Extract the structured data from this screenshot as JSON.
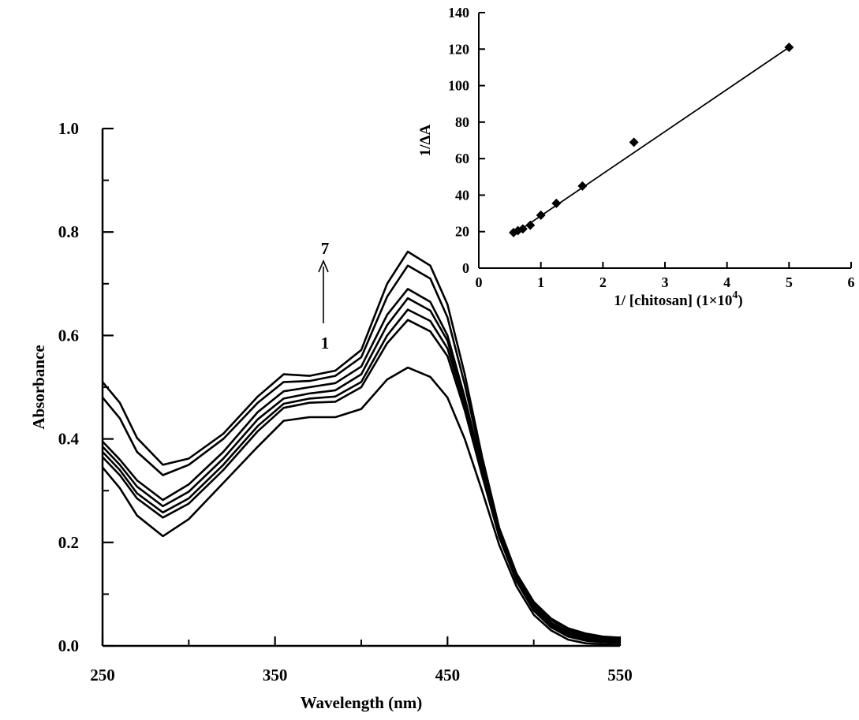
{
  "chart_data": [
    {
      "type": "line",
      "xlabel": "Wavelength (nm)",
      "ylabel": "Absorbance",
      "xlim": [
        250,
        550
      ],
      "ylim": [
        0.0,
        1.0
      ],
      "x_ticks": [
        "250",
        "350",
        "450",
        "550"
      ],
      "y_ticks": [
        "0.0",
        "0.2",
        "0.4",
        "0.6",
        "0.8",
        "1.0"
      ],
      "grid": false,
      "annotation": {
        "from_label": "1",
        "to_label": "7",
        "direction": "up",
        "x": 375
      },
      "x": [
        250,
        260,
        270,
        285,
        300,
        320,
        340,
        355,
        370,
        385,
        400,
        415,
        427,
        440,
        450,
        460,
        470,
        480,
        490,
        500,
        510,
        520,
        530,
        540,
        550
      ],
      "series": [
        {
          "values": [
            0.345,
            0.305,
            0.252,
            0.212,
            0.245,
            0.315,
            0.385,
            0.435,
            0.442,
            0.442,
            0.458,
            0.515,
            0.538,
            0.52,
            0.48,
            0.4,
            0.3,
            0.195,
            0.115,
            0.06,
            0.03,
            0.012,
            0.005,
            0.003,
            0.002
          ]
        },
        {
          "values": [
            0.365,
            0.33,
            0.285,
            0.248,
            0.275,
            0.34,
            0.415,
            0.46,
            0.47,
            0.472,
            0.5,
            0.585,
            0.63,
            0.608,
            0.56,
            0.455,
            0.33,
            0.21,
            0.125,
            0.068,
            0.036,
            0.018,
            0.01,
            0.007,
            0.006
          ]
        },
        {
          "values": [
            0.375,
            0.34,
            0.295,
            0.258,
            0.285,
            0.35,
            0.425,
            0.468,
            0.478,
            0.482,
            0.51,
            0.6,
            0.65,
            0.628,
            0.575,
            0.465,
            0.335,
            0.212,
            0.127,
            0.07,
            0.038,
            0.02,
            0.012,
            0.009,
            0.008
          ]
        },
        {
          "values": [
            0.385,
            0.35,
            0.308,
            0.27,
            0.298,
            0.362,
            0.438,
            0.478,
            0.488,
            0.494,
            0.525,
            0.62,
            0.672,
            0.648,
            0.59,
            0.475,
            0.34,
            0.215,
            0.13,
            0.073,
            0.041,
            0.023,
            0.014,
            0.011,
            0.01
          ]
        },
        {
          "values": [
            0.395,
            0.36,
            0.32,
            0.282,
            0.312,
            0.375,
            0.452,
            0.492,
            0.5,
            0.508,
            0.54,
            0.64,
            0.69,
            0.665,
            0.6,
            0.48,
            0.344,
            0.218,
            0.133,
            0.077,
            0.045,
            0.027,
            0.017,
            0.013,
            0.012
          ]
        },
        {
          "values": [
            0.48,
            0.44,
            0.375,
            0.33,
            0.35,
            0.4,
            0.47,
            0.51,
            0.512,
            0.522,
            0.558,
            0.675,
            0.735,
            0.71,
            0.635,
            0.505,
            0.356,
            0.224,
            0.137,
            0.082,
            0.05,
            0.031,
            0.021,
            0.016,
            0.014
          ]
        },
        {
          "values": [
            0.51,
            0.47,
            0.402,
            0.35,
            0.362,
            0.41,
            0.482,
            0.525,
            0.522,
            0.532,
            0.572,
            0.7,
            0.762,
            0.735,
            0.66,
            0.525,
            0.366,
            0.228,
            0.14,
            0.085,
            0.053,
            0.034,
            0.024,
            0.018,
            0.016
          ]
        }
      ]
    },
    {
      "type": "scatter",
      "xlabel": "1/ [chitosan] (1×10",
      "xlabel_sup": "4",
      "xlabel_end": ")",
      "ylabel": "1/ΔA",
      "xlim": [
        0,
        6
      ],
      "ylim": [
        0,
        140
      ],
      "x_ticks": [
        "0",
        "1",
        "2",
        "3",
        "4",
        "5",
        "6"
      ],
      "y_ticks": [
        "0",
        "20",
        "40",
        "60",
        "80",
        "100",
        "120",
        "140"
      ],
      "grid": false,
      "points": [
        {
          "x": 0.56,
          "y": 19.5
        },
        {
          "x": 0.63,
          "y": 20.5
        },
        {
          "x": 0.71,
          "y": 21.5
        },
        {
          "x": 0.83,
          "y": 23.5
        },
        {
          "x": 1.0,
          "y": 29.0
        },
        {
          "x": 1.25,
          "y": 35.5
        },
        {
          "x": 1.67,
          "y": 45.0
        },
        {
          "x": 2.5,
          "y": 69.0
        },
        {
          "x": 5.0,
          "y": 121.0
        }
      ],
      "fit_line": {
        "x": [
          0.56,
          5.0
        ],
        "y": [
          18.5,
          121.0
        ]
      }
    }
  ]
}
